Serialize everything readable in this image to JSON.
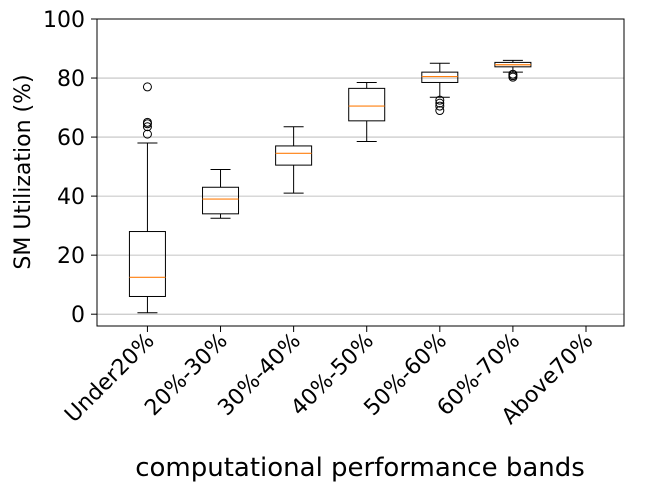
{
  "chart_data": {
    "type": "box",
    "title": "",
    "xlabel": "computational performance bands",
    "ylabel": "SM Utilization (%)",
    "ylim": [
      -4,
      100
    ],
    "yticks": [
      0,
      20,
      40,
      60,
      80,
      100
    ],
    "grid": "horizontal",
    "categories": [
      "Under20%",
      "20%-30%",
      "30%-40%",
      "40%-50%",
      "50%-60%",
      "60%-70%",
      "Above70%"
    ],
    "boxes": [
      {
        "category": "Under20%",
        "whisker_low": 0.5,
        "q1": 6,
        "median": 12.5,
        "q3": 28,
        "whisker_high": 58,
        "outliers": [
          61,
          63.5,
          64.5,
          65,
          77
        ]
      },
      {
        "category": "20%-30%",
        "whisker_low": 32.5,
        "q1": 34,
        "median": 39,
        "q3": 43,
        "whisker_high": 49,
        "outliers": []
      },
      {
        "category": "30%-40%",
        "whisker_low": 41,
        "q1": 50.5,
        "median": 54.5,
        "q3": 57,
        "whisker_high": 63.5,
        "outliers": []
      },
      {
        "category": "40%-50%",
        "whisker_low": 58.5,
        "q1": 65.5,
        "median": 70.5,
        "q3": 76.5,
        "whisker_high": 78.5,
        "outliers": []
      },
      {
        "category": "50%-60%",
        "whisker_low": 73.5,
        "q1": 78.5,
        "median": 80.5,
        "q3": 82,
        "whisker_high": 85,
        "outliers": [
          69,
          70.5,
          71.5,
          72.5
        ]
      },
      {
        "category": "60%-70%",
        "whisker_low": 82,
        "q1": 83.8,
        "median": 84.5,
        "q3": 85.3,
        "whisker_high": 86,
        "outliers": [
          80.3,
          80.8,
          81.3
        ]
      },
      {
        "category": "Above70%",
        "whisker_low": null,
        "q1": null,
        "median": null,
        "q3": null,
        "whisker_high": null,
        "outliers": []
      }
    ],
    "colors": {
      "box": "#000000",
      "median": "#ff7f0e",
      "grid": "#b0b0b0"
    }
  }
}
